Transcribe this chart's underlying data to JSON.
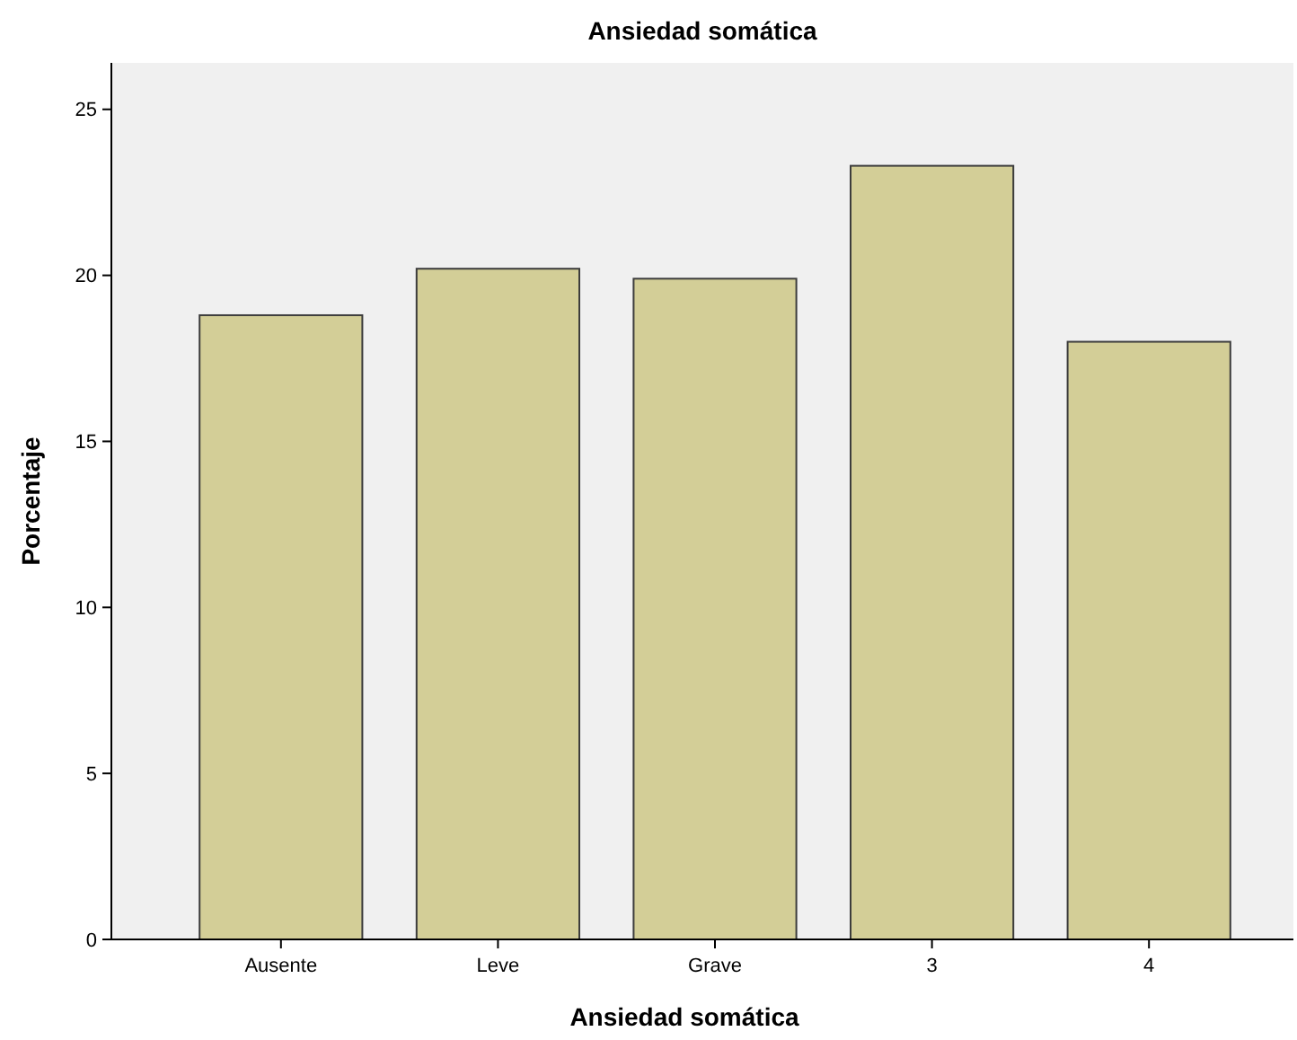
{
  "chart_data": {
    "type": "bar",
    "title": "Ansiedad somática",
    "xlabel": "Ansiedad somática",
    "ylabel": "Porcentaje",
    "categories": [
      "Ausente",
      "Leve",
      "Grave",
      "3",
      "4"
    ],
    "values": [
      18.8,
      20.2,
      19.9,
      23.3,
      18.0
    ],
    "color": "#d3ce97",
    "ylim": [
      0,
      26.4
    ],
    "yticks": [
      0,
      5,
      10,
      15,
      20,
      25
    ],
    "grid": false
  }
}
